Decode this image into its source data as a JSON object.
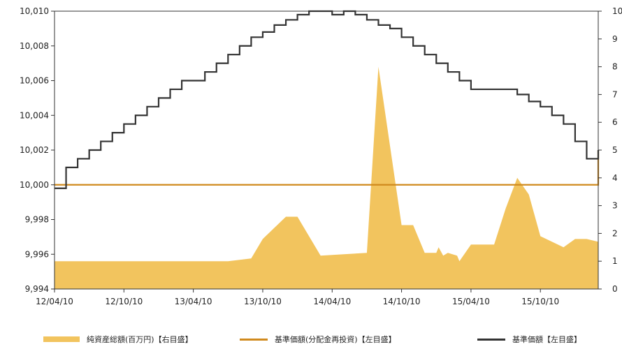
{
  "chart_data": {
    "type": "line",
    "title": "",
    "xlabel": "",
    "ylabel": "",
    "x_ticks": [
      "12/04/10",
      "12/10/10",
      "13/04/10",
      "13/10/10",
      "14/04/10",
      "14/10/10",
      "15/04/10",
      "15/10/10"
    ],
    "y_left": {
      "min": 9994,
      "max": 10010,
      "ticks": [
        9994,
        9996,
        9998,
        10000,
        10002,
        10004,
        10006,
        10008,
        10010
      ],
      "tick_labels": [
        "9,994",
        "9,996",
        "9,998",
        "10,000",
        "10,002",
        "10,004",
        "10,006",
        "10,008",
        "10,010"
      ]
    },
    "y_right": {
      "min": 0,
      "max": 10,
      "ticks": [
        0,
        1,
        2,
        3,
        4,
        5,
        6,
        7,
        8,
        9,
        10
      ],
      "tick_labels": [
        "0",
        "1",
        "2",
        "3",
        "4",
        "5",
        "6",
        "7",
        "8",
        "9",
        "10"
      ]
    },
    "x_range": [
      0,
      47
    ],
    "grid": false,
    "legend_position": "bottom",
    "series": [
      {
        "name": "純資産総額(百万円)【右目盛】",
        "kind": "area",
        "axis": "right",
        "color": "#f2c45e",
        "x": [
          0,
          3,
          4,
          7,
          10,
          15,
          17,
          18,
          20,
          21,
          23,
          25,
          27,
          28,
          30,
          31,
          32,
          33,
          33.2,
          33.6,
          34,
          34.8,
          35,
          36,
          38,
          39,
          40,
          41,
          42,
          44,
          45,
          46,
          47
        ],
        "values": [
          1.0,
          1.0,
          1.0,
          1.0,
          1.0,
          1.0,
          1.1,
          1.8,
          2.6,
          2.6,
          1.2,
          1.25,
          1.3,
          8.0,
          2.3,
          2.3,
          1.3,
          1.3,
          1.5,
          1.2,
          1.3,
          1.2,
          1.0,
          1.6,
          1.6,
          2.9,
          4.0,
          3.4,
          1.9,
          1.5,
          1.8,
          1.8,
          1.7
        ]
      },
      {
        "name": "基準価額(分配金再投資)【左目盛】",
        "kind": "line",
        "axis": "left",
        "color": "#d08a1e",
        "x": [
          0,
          47
        ],
        "values": [
          10000,
          10002
        ]
      },
      {
        "name": "基準価額【左目盛】",
        "kind": "line",
        "axis": "left",
        "color": "#333333",
        "x": [
          0,
          1,
          2,
          3,
          4,
          5,
          6,
          7,
          8,
          9,
          10,
          11,
          12,
          13,
          14,
          15,
          16,
          17,
          18,
          19,
          20,
          21,
          22,
          23,
          24,
          25,
          26,
          27,
          28,
          29,
          30,
          31,
          32,
          33,
          34,
          35,
          36,
          37,
          38,
          39,
          40,
          41,
          42,
          43,
          44,
          45,
          46,
          47
        ],
        "values": [
          9999.8,
          10001,
          10001.5,
          10002,
          10002.5,
          10003,
          10003.5,
          10004,
          10004.5,
          10005,
          10005.5,
          10006,
          10006,
          10006.5,
          10007,
          10007.5,
          10008,
          10008.5,
          10008.8,
          10009.2,
          10009.5,
          10009.8,
          10010,
          10010,
          10009.8,
          10010,
          10009.8,
          10009.5,
          10009.2,
          10009,
          10008.5,
          10008,
          10007.5,
          10007,
          10006.5,
          10006,
          10005.5,
          10005.5,
          10005.5,
          10005.5,
          10005.2,
          10004.8,
          10004.5,
          10004,
          10003.5,
          10002.5,
          10001.5,
          10002
        ]
      }
    ]
  }
}
